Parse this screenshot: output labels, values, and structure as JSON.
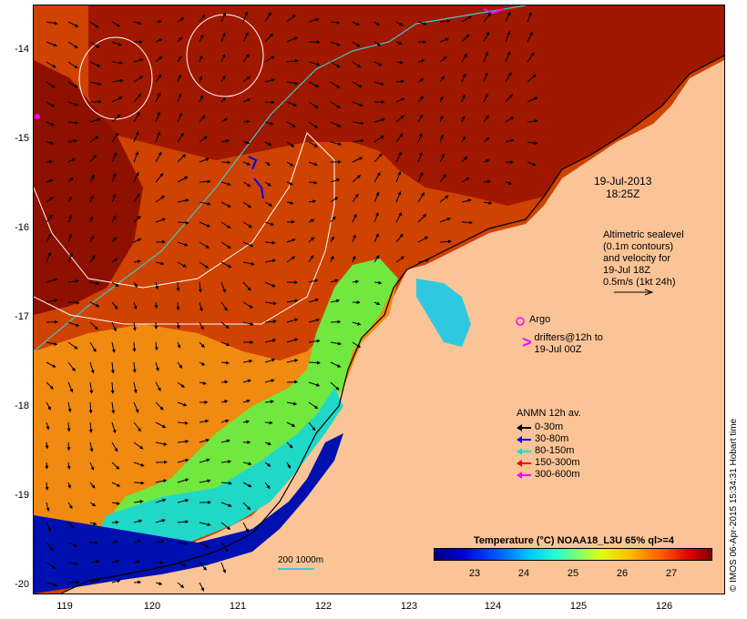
{
  "axes": {
    "lat_ticks": [
      "-14",
      "-15",
      "-16",
      "-17",
      "-18",
      "-19",
      "-20"
    ],
    "lon_ticks": [
      "119",
      "120",
      "121",
      "122",
      "123",
      "124",
      "125",
      "126"
    ]
  },
  "timestamp": {
    "date": "19-Jul-2013",
    "time": "18:25Z"
  },
  "altimetry": {
    "lines": [
      "Altimetric sealevel",
      "(0.1m contours)",
      "and velocity for",
      "19-Jul 18Z",
      "0.5m/s (1kt 24h)"
    ]
  },
  "argo": {
    "label": "Argo",
    "color": "#ff00ff"
  },
  "drifters": {
    "glyph": ">",
    "lines": [
      "drifters@12h to",
      "19-Jul 00Z"
    ],
    "color": "#ff00ff"
  },
  "drifter_legend": {
    "title": "ANMN 12h av.",
    "items": [
      {
        "label": "0-30m",
        "color": "#000000"
      },
      {
        "label": "30-80m",
        "color": "#0000ff"
      },
      {
        "label": "80-150m",
        "color": "#00e0e0"
      },
      {
        "label": "150-300m",
        "color": "#ff0000"
      },
      {
        "label": "300-600m",
        "color": "#ff00ff"
      }
    ]
  },
  "colorbar": {
    "title": "Temperature (°C) NOAA18_L3U 65% ql>=4",
    "ticks": [
      "23",
      "24",
      "25",
      "26",
      "27"
    ]
  },
  "scale": {
    "label": "200  1000m",
    "color": "#40c8c8"
  },
  "credit": "© IMOS 06-Apr-2015 15:34:31 Hobart time",
  "colors": {
    "land": "#fbc497",
    "contour": "#ffffff",
    "isobath": "#40c8c8"
  }
}
